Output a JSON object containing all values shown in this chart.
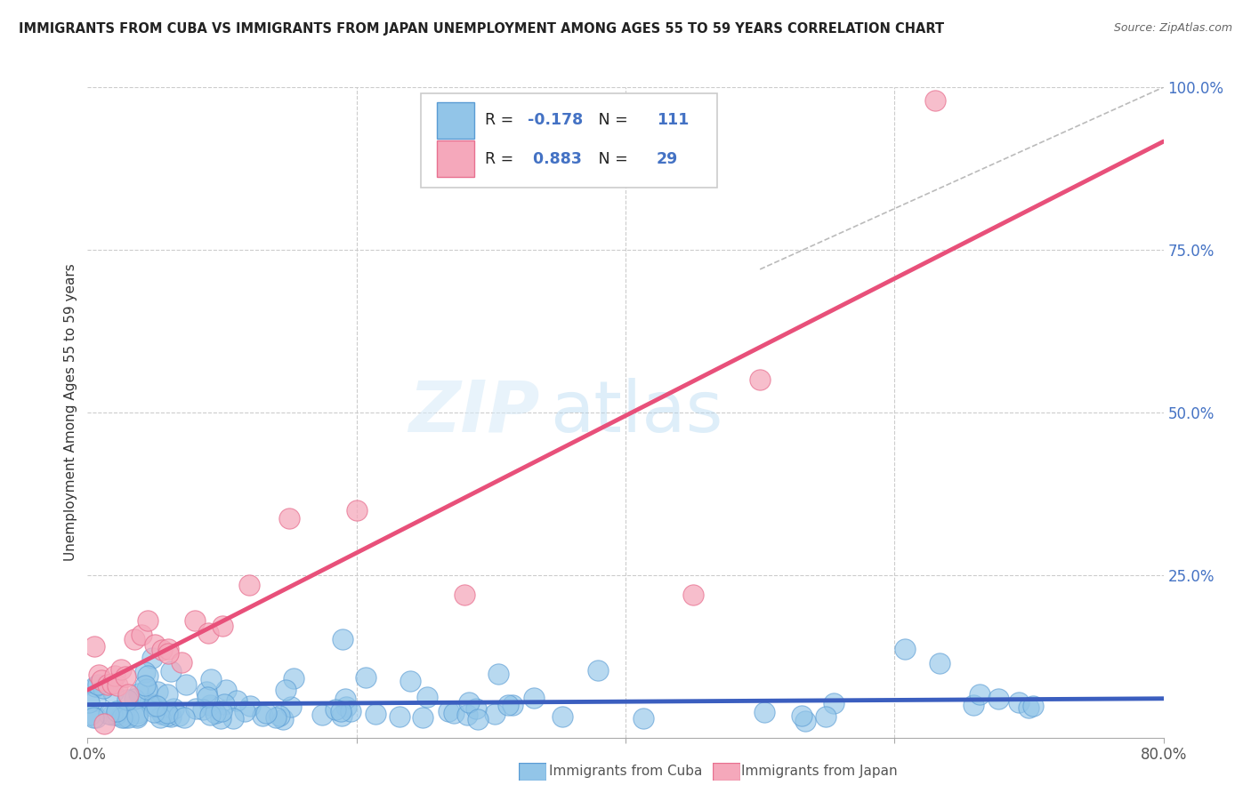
{
  "title": "IMMIGRANTS FROM CUBA VS IMMIGRANTS FROM JAPAN UNEMPLOYMENT AMONG AGES 55 TO 59 YEARS CORRELATION CHART",
  "source": "Source: ZipAtlas.com",
  "ylabel": "Unemployment Among Ages 55 to 59 years",
  "xlim": [
    0.0,
    0.8
  ],
  "ylim": [
    0.0,
    1.0
  ],
  "cuba_color": "#92C5E8",
  "cuba_edge_color": "#5A9CD4",
  "japan_color": "#F5A8BB",
  "japan_edge_color": "#E87090",
  "cuba_R": -0.178,
  "cuba_N": 111,
  "japan_R": 0.883,
  "japan_N": 29,
  "cuba_line_color": "#3B5EBF",
  "japan_line_color": "#E8507A",
  "watermark_zip": "ZIP",
  "watermark_atlas": "atlas",
  "legend_label_cuba": "Immigrants from Cuba",
  "legend_label_japan": "Immigrants from Japan",
  "bg_color": "#FFFFFF",
  "grid_color": "#CCCCCC",
  "title_color": "#222222",
  "source_color": "#666666",
  "tick_color_y": "#4472C4",
  "tick_color_x": "#555555",
  "ylabel_color": "#333333"
}
